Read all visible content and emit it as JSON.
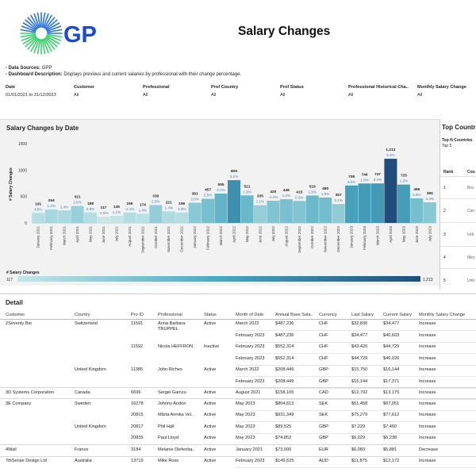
{
  "header": {
    "title": "Salary Changes"
  },
  "brand": {
    "logo_text": "GP",
    "colors": {
      "blue": "#1a49c9",
      "ray_green": "#3ccf6b",
      "ray_blue": "#2b74e0"
    }
  },
  "info": {
    "sources_label": "- Data Sources:",
    "sources_value": "GPP",
    "description_label": "- Dashboard Description:",
    "description_value": "Displays previous and current salaries by professional with their change percentage."
  },
  "filters": [
    {
      "label": "Date",
      "value": "01/01/2021 to 31/12/2023"
    },
    {
      "label": "Customer",
      "value": "All"
    },
    {
      "label": "Professional",
      "value": "All"
    },
    {
      "label": "Prof Country",
      "value": "All"
    },
    {
      "label": "Prof Status",
      "value": "All"
    },
    {
      "label": "Professional Historical Cha..",
      "value": "All"
    },
    {
      "label": "Monthly Salary Change",
      "value": "All"
    }
  ],
  "chart_data": {
    "type": "bar",
    "title": "Salary Changes by Date",
    "ylabel": "# Salary Changes",
    "ylim": [
      0,
      1500
    ],
    "yticks": [
      0,
      500,
      1000,
      1500
    ],
    "categories": [
      "January 2021",
      "February 2021",
      "March 2021",
      "April 2021",
      "May 2021",
      "June 2021",
      "July 2021",
      "August 2021",
      "September 2021",
      "October 2021",
      "November 2021",
      "December 2021",
      "January 2022",
      "February 2022",
      "March 2022",
      "April 2022",
      "May 2022",
      "June 2022",
      "July 2022",
      "August 2022",
      "September 2022",
      "October 2022",
      "November 2022",
      "December 2022",
      "January 2023",
      "February 2023",
      "March 2023",
      "April 2023",
      "May 2023",
      "June 2023",
      "July 2023"
    ],
    "values": [
      191,
      254,
      236,
      321,
      198,
      117,
      135,
      196,
      174,
      339,
      221,
      196,
      381,
      457,
      555,
      809,
      521,
      335,
      420,
      449,
      415,
      519,
      480,
      357,
      708,
      746,
      747,
      1213,
      725,
      465,
      390
    ],
    "pct_labels": [
      "4.8%",
      "1.2%",
      "2.4%",
      "2.9%",
      "0.8%",
      "-1.0%",
      "1.1%",
      "-1.1%",
      "1.4%",
      "2.5%",
      "1.4%",
      "3.3%",
      "2.0%",
      "5.5%",
      "2.1%",
      "3.1%",
      "1.9%",
      "1.1%",
      "-1.4%",
      "1.2%",
      "0.3%",
      "1.9%",
      "1.9%",
      "2.1%",
      "2.0%",
      "1.0%",
      "3.2%",
      "5.3%",
      "1.3%",
      "2.8%",
      "4.3%"
    ],
    "value_labels": [
      "191",
      "254",
      "",
      "321",
      "198",
      "117",
      "135",
      "196",
      "174",
      "339",
      "221",
      "196",
      "381",
      "457",
      "555",
      "809",
      "521",
      "335",
      "420",
      "449",
      "415",
      "519",
      "480",
      "357",
      "708",
      "746",
      "747",
      "1,213",
      "725",
      "465",
      "390"
    ],
    "legend": {
      "title": "# Salary Changes",
      "min_label": "117",
      "max_label": "1,213"
    }
  },
  "top_countries": {
    "title": "Top Countries",
    "n_label": "Top N Countries",
    "n_value": "Top 5",
    "rank_header": "Rank",
    "country_header": "Cou",
    "rows": [
      {
        "rank": "1",
        "country": "Bra"
      },
      {
        "rank": "2",
        "country": "Can"
      },
      {
        "rank": "3",
        "country": "Indi"
      },
      {
        "rank": "4",
        "country": "Mex"
      },
      {
        "rank": "5",
        "country": "Unit"
      }
    ]
  },
  "detail": {
    "title": "Detail",
    "columns": [
      "Customer",
      "Country",
      "Pro ID",
      "Professional",
      "Status",
      "Month of Date",
      "Annual Base Sala..",
      "Currency",
      "Last Salary",
      "Current Salary",
      "Monthly Salary Change"
    ],
    "rows": [
      {
        "customer": "2Seventy Bio",
        "country": "Switzerland",
        "pro_id": "11591",
        "professional": "Anna Barbara TRUPPEL",
        "status": "Active",
        "month": "March 2022",
        "annual": "$487,236",
        "currency": "CHF",
        "last": "$32,836",
        "current": "$34,477",
        "change": "Increase"
      },
      {
        "customer": "",
        "country": "",
        "pro_id": "",
        "professional": "",
        "status": "",
        "month": "February 2023",
        "annual": "$487,236",
        "currency": "CHF",
        "last": "$34,477",
        "current": "$40,603",
        "change": "Increase"
      },
      {
        "customer": "",
        "country": "",
        "pro_id": "11592",
        "professional": "Nicola HEFFRON",
        "status": "Inactive",
        "month": "February 2023",
        "annual": "$552,314",
        "currency": "CHF",
        "last": "$43,426",
        "current": "$44,729",
        "change": "Increase"
      },
      {
        "customer": "",
        "country": "",
        "pro_id": "",
        "professional": "",
        "status": "",
        "month": "February 2023",
        "annual": "$552,314",
        "currency": "CHF",
        "last": "$44,729",
        "current": "$46,026",
        "change": "Increase"
      },
      {
        "customer": "",
        "country": "United Kingdom",
        "pro_id": "11385",
        "professional": "John Riches",
        "status": "Active",
        "month": "March 2022",
        "annual": "$208,449",
        "currency": "GBP",
        "last": "$15,750",
        "current": "$16,144",
        "change": "Increase"
      },
      {
        "customer": "",
        "country": "",
        "pro_id": "",
        "professional": "",
        "status": "",
        "month": "February 2023",
        "annual": "$208,449",
        "currency": "GBP",
        "last": "$16,144",
        "current": "$17,371",
        "change": "Increase"
      },
      {
        "customer": "3D Systems Corporation",
        "country": "Canada",
        "pro_id": "6696",
        "professional": "Sergei Gamzu",
        "status": "Active",
        "month": "August 2021",
        "annual": "$158,105",
        "currency": "CAD",
        "last": "$12,792",
        "current": "$13,175",
        "change": "Increase"
      },
      {
        "customer": "3E Company",
        "country": "Sweden",
        "pro_id": "16278",
        "professional": "Johnny Andon",
        "status": "Active",
        "month": "May 2023",
        "annual": "$804,613",
        "currency": "SEK",
        "last": "$61,458",
        "current": "$67,051",
        "change": "Increase"
      },
      {
        "customer": "",
        "country": "",
        "pro_id": "20815",
        "professional": "Mårta Annika Vel..",
        "status": "Active",
        "month": "May 2023",
        "annual": "$931,349",
        "currency": "SEK",
        "last": "$75,279",
        "current": "$77,612",
        "change": "Increase"
      },
      {
        "customer": "",
        "country": "United Kingdom",
        "pro_id": "20817",
        "professional": "Phil Hall",
        "status": "Active",
        "month": "May 2023",
        "annual": "$89,525",
        "currency": "GBP",
        "last": "$7,229",
        "current": "$7,460",
        "change": "Increase"
      },
      {
        "customer": "",
        "country": "",
        "pro_id": "20835",
        "professional": "Paul Lloyd",
        "status": "Active",
        "month": "May 2023",
        "annual": "$74,852",
        "currency": "GBP",
        "last": "$6,029",
        "current": "$6,238",
        "change": "Increase"
      },
      {
        "customer": "4Wall",
        "country": "France",
        "pro_id": "3184",
        "professional": "Melanie Diefenba..",
        "status": "Active",
        "month": "January 2021",
        "annual": "$73,000",
        "currency": "EUR",
        "last": "$6,083",
        "current": "$5,881",
        "change": "Decrease"
      },
      {
        "customer": "7thSense Design Ltd",
        "country": "Australia",
        "pro_id": "13719",
        "professional": "Mike Ross",
        "status": "Active",
        "month": "February 2023",
        "annual": "$149,625",
        "currency": "AUD",
        "last": "$11,875",
        "current": "$12,172",
        "change": "Increase"
      }
    ]
  }
}
